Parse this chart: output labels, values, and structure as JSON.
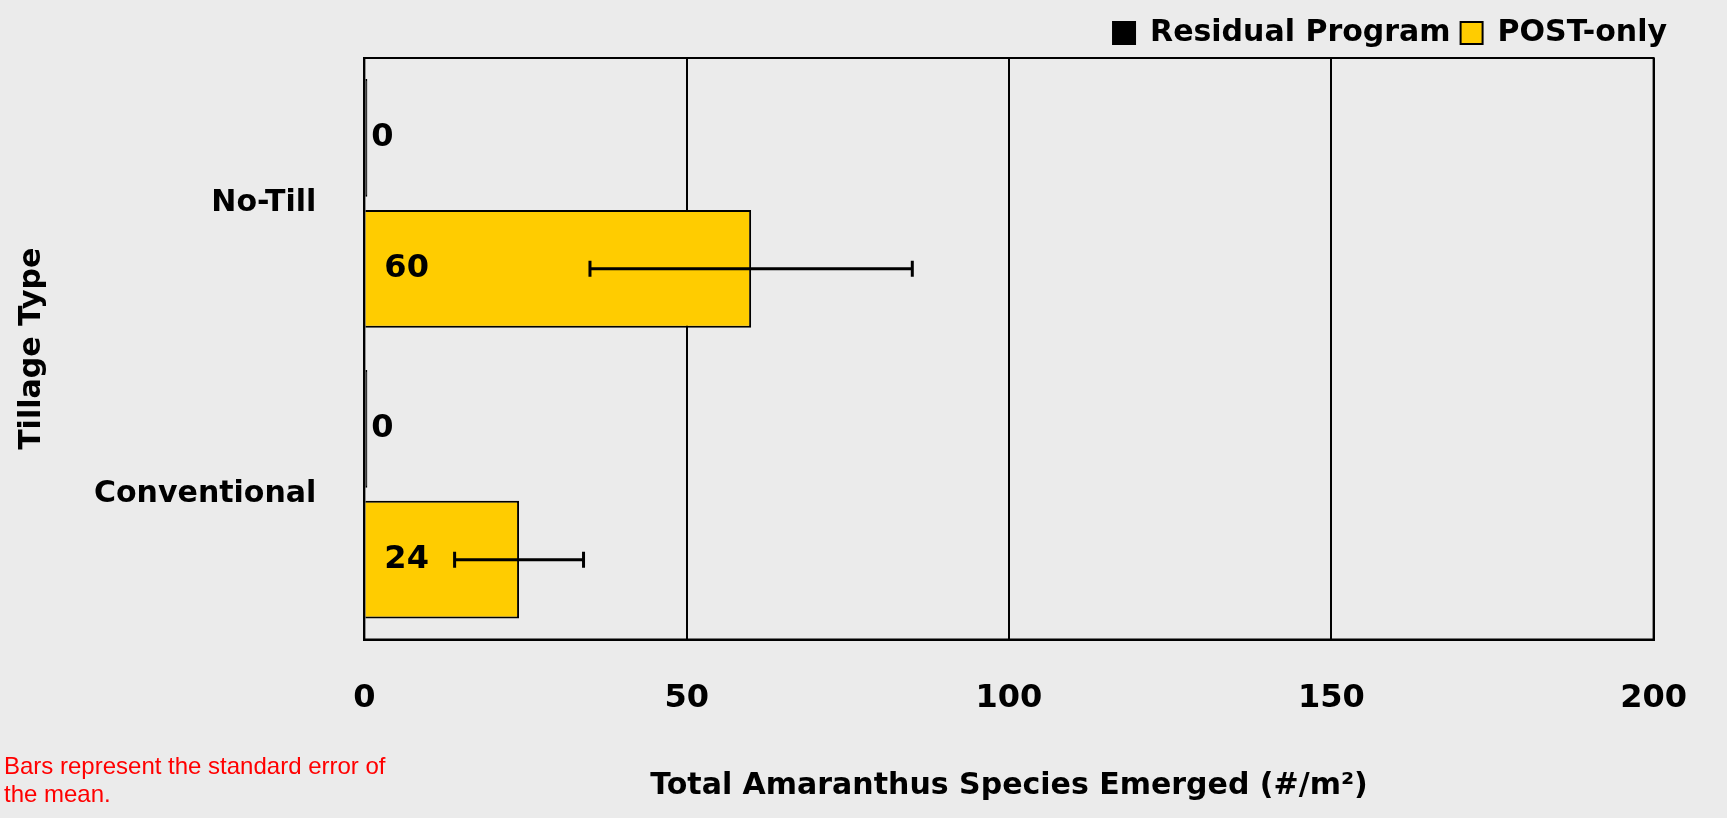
{
  "chart_data": {
    "type": "bar",
    "orientation": "horizontal",
    "xlabel": "Total Amaranthus Species Emerged (#/m²)",
    "ylabel": "Tillage Type",
    "categories": [
      "No-Till",
      "Conventional"
    ],
    "series": [
      {
        "name": "Residual Program",
        "color": "#000000",
        "values": [
          0,
          0
        ]
      },
      {
        "name": "POST-only",
        "color": "#ffcc00",
        "values": [
          60,
          24
        ],
        "errors": [
          25,
          10
        ]
      }
    ],
    "xlim": [
      0,
      200
    ],
    "xticks": [
      0,
      50,
      100,
      150,
      200
    ],
    "grid": "x",
    "legend": "top right",
    "data_labels": true,
    "annotations": [
      "Bars represent the standard error of the mean."
    ]
  }
}
